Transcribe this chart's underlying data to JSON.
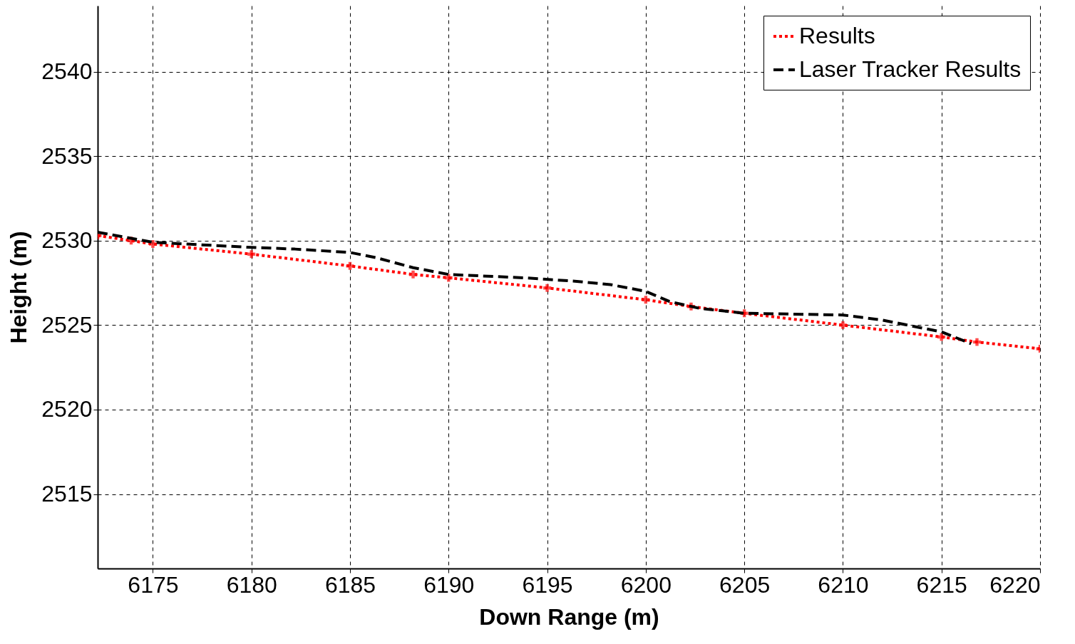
{
  "chart_data": {
    "type": "line",
    "xlabel": "Down Range (m)",
    "ylabel": "Height (m)",
    "xlim": [
      6172.2,
      6220
    ],
    "xticks": [
      6175,
      6180,
      6185,
      6190,
      6195,
      6200,
      6205,
      6210,
      6215,
      6220
    ],
    "ylim": [
      2510.6,
      2543.9
    ],
    "yticks": [
      2515,
      2520,
      2525,
      2530,
      2535,
      2540
    ],
    "grid": true,
    "legend": "top right",
    "series": [
      {
        "name": "Results",
        "color": "#ff0000",
        "line_style": "dotted",
        "marker": "cross",
        "x": [
          6172.2,
          6173.9,
          6175,
          6180,
          6185,
          6188.2,
          6190,
          6195,
          6200,
          6202.3,
          6205,
          6210,
          6215,
          6216.8,
          6220
        ],
        "values": [
          2530.3,
          2530.0,
          2529.8,
          2529.2,
          2528.5,
          2528.0,
          2527.8,
          2527.2,
          2526.5,
          2526.1,
          2525.7,
          2525.0,
          2524.3,
          2524.0,
          2523.6
        ]
      },
      {
        "name": "Laser Tracker Results",
        "color": "#000000",
        "line_style": "dashed",
        "marker": "none",
        "x": [
          6172.2,
          6175,
          6180,
          6182.2,
          6185,
          6186.3,
          6188.2,
          6190,
          6193.8,
          6196.4,
          6198.2,
          6200,
          6201.2,
          6202.7,
          6205,
          6210,
          6212,
          6215,
          6216.5
        ],
        "values": [
          2530.5,
          2529.9,
          2529.6,
          2529.5,
          2529.3,
          2529.0,
          2528.4,
          2528.0,
          2527.8,
          2527.6,
          2527.4,
          2527.0,
          2526.4,
          2526.0,
          2525.7,
          2525.6,
          2525.3,
          2524.6,
          2523.9
        ]
      }
    ]
  }
}
